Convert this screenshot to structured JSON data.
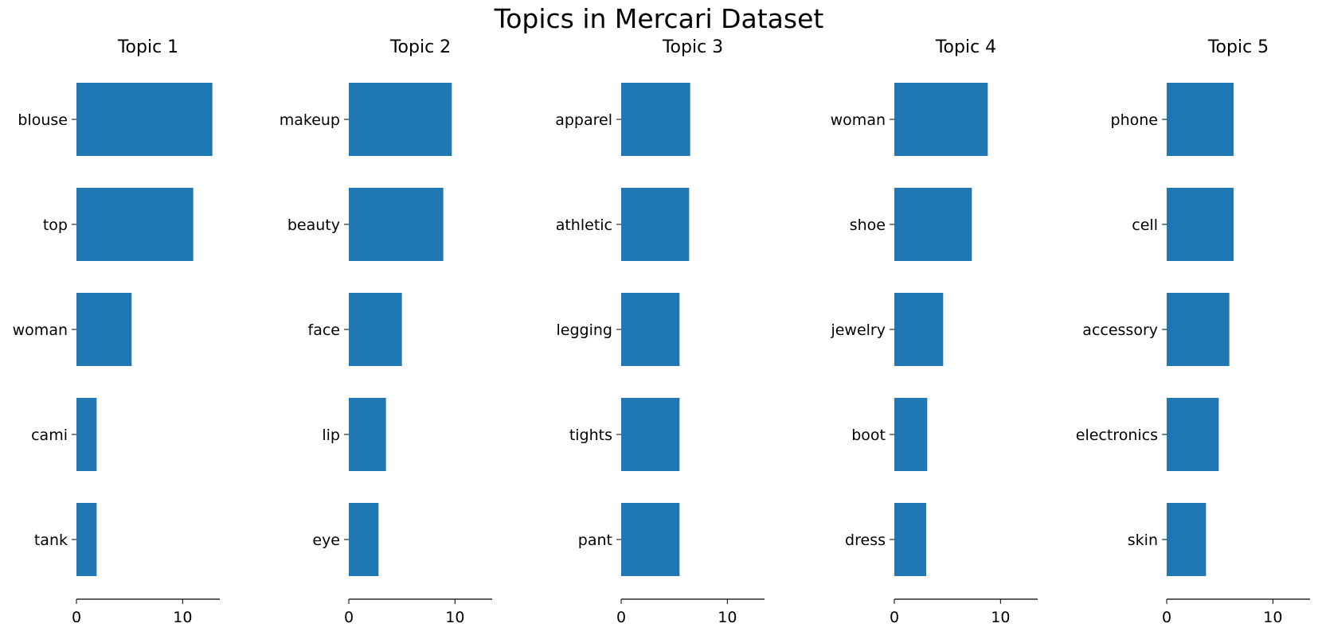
{
  "figure_title": "Topics in Mercari Dataset",
  "colors": {
    "bar": "#1f77b4",
    "axis": "#000000",
    "background": "#ffffff"
  },
  "chart_data": [
    {
      "type": "bar",
      "orientation": "horizontal",
      "title": "Topic 1",
      "categories": [
        "blouse",
        "top",
        "woman",
        "cami",
        "tank"
      ],
      "values": [
        12.8,
        11.0,
        5.2,
        1.9,
        1.9
      ],
      "xlim": [
        0,
        13.5
      ],
      "xticks": [
        0,
        10
      ],
      "xtick_labels": [
        "0",
        "10"
      ],
      "grid": false
    },
    {
      "type": "bar",
      "orientation": "horizontal",
      "title": "Topic 2",
      "categories": [
        "makeup",
        "beauty",
        "face",
        "lip",
        "eye"
      ],
      "values": [
        9.7,
        8.9,
        5.0,
        3.5,
        2.8
      ],
      "xlim": [
        0,
        13.5
      ],
      "xticks": [
        0,
        10
      ],
      "xtick_labels": [
        "0",
        "10"
      ],
      "grid": false
    },
    {
      "type": "bar",
      "orientation": "horizontal",
      "title": "Topic 3",
      "categories": [
        "apparel",
        "athletic",
        "legging",
        "tights",
        "pant"
      ],
      "values": [
        6.5,
        6.4,
        5.5,
        5.5,
        5.5
      ],
      "xlim": [
        0,
        13.5
      ],
      "xticks": [
        0,
        10
      ],
      "xtick_labels": [
        "0",
        "10"
      ],
      "grid": false
    },
    {
      "type": "bar",
      "orientation": "horizontal",
      "title": "Topic 4",
      "categories": [
        "woman",
        "shoe",
        "jewelry",
        "boot",
        "dress"
      ],
      "values": [
        8.8,
        7.3,
        4.6,
        3.1,
        3.0
      ],
      "xlim": [
        0,
        13.5
      ],
      "xticks": [
        0,
        10
      ],
      "xtick_labels": [
        "0",
        "10"
      ],
      "grid": false
    },
    {
      "type": "bar",
      "orientation": "horizontal",
      "title": "Topic 5",
      "categories": [
        "phone",
        "cell",
        "accessory",
        "electronics",
        "skin"
      ],
      "values": [
        6.3,
        6.3,
        5.9,
        4.9,
        3.7
      ],
      "xlim": [
        0,
        13.5
      ],
      "xticks": [
        0,
        10
      ],
      "xtick_labels": [
        "0",
        "10"
      ],
      "grid": false
    }
  ]
}
